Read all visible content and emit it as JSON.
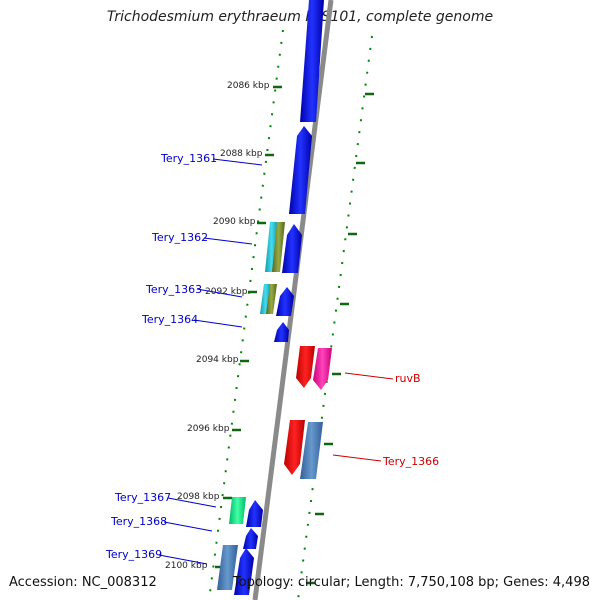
{
  "title": "Trichodesmium erythraeum IMS101, complete genome",
  "footer": {
    "accession": "Accession: NC_008312",
    "topology": "Topology: circular; Length: 7,750,108 bp; Genes: 4,498"
  },
  "ticks": [
    "2086 kbp",
    "2088 kbp",
    "2090 kbp",
    "2092 kbp",
    "2094 kbp",
    "2096 kbp",
    "2098 kbp",
    "2100 kbp"
  ],
  "genes": [
    {
      "name": "Tery_1361",
      "color": "#0000cc"
    },
    {
      "name": "Tery_1362",
      "color": "#0000cc"
    },
    {
      "name": "Tery_1363",
      "color": "#0000cc"
    },
    {
      "name": "Tery_1364",
      "color": "#0000cc"
    },
    {
      "name": "ruvB",
      "color": "#cc0000"
    },
    {
      "name": "Tery_1366",
      "color": "#cc0000"
    },
    {
      "name": "Tery_1367",
      "color": "#0000cc"
    },
    {
      "name": "Tery_1368",
      "color": "#0000cc"
    },
    {
      "name": "Tery_1369",
      "color": "#0000cc"
    }
  ],
  "colors": {
    "backbone": "#8a8a8a",
    "dots": "#008800",
    "forward_gene": "#0000ee",
    "reverse_gene": "#ee0000",
    "magenta_gene": "#ee1199",
    "steel_gene": "#4477bb",
    "cyan_feature": "#22bbcc",
    "olive_feature": "#778833",
    "green_feature": "#11dd88"
  }
}
